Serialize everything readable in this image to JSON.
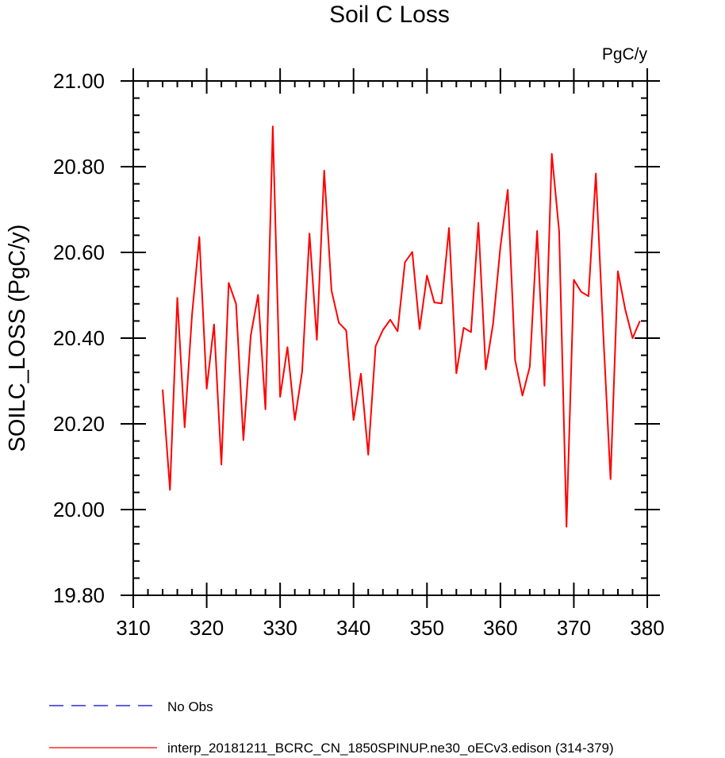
{
  "chart_data": {
    "type": "line",
    "title": "Soil C Loss",
    "units_label": "PgC/y",
    "xlabel": "",
    "ylabel": "SOILC_LOSS  (PgC/y)",
    "xlim": [
      310,
      380
    ],
    "ylim": [
      19.8,
      21.0
    ],
    "xticks": [
      310,
      320,
      330,
      340,
      350,
      360,
      370,
      380
    ],
    "xtick_labels": [
      "310",
      "320",
      "330",
      "340",
      "350",
      "360",
      "370",
      "380"
    ],
    "yticks": [
      19.8,
      20.0,
      20.2,
      20.4,
      20.6,
      20.8,
      21.0
    ],
    "ytick_labels": [
      "19.80",
      "20.00",
      "20.20",
      "20.40",
      "20.60",
      "20.80",
      "21.00"
    ],
    "grid": false,
    "legend_position": "bottom",
    "series": [
      {
        "name": "No Obs",
        "color": "#0000cc",
        "dash": "dashed",
        "x": [],
        "y": []
      },
      {
        "name": "interp_20181211_BCRC_CN_1850SPINUP.ne30_oECv3.edison (314-379)",
        "color": "#ff0000",
        "dash": "solid",
        "x": [
          314,
          315,
          316,
          317,
          318,
          319,
          320,
          321,
          322,
          323,
          324,
          325,
          326,
          327,
          328,
          329,
          330,
          331,
          332,
          333,
          334,
          335,
          336,
          337,
          338,
          339,
          340,
          341,
          342,
          343,
          344,
          345,
          346,
          347,
          348,
          349,
          350,
          351,
          352,
          353,
          354,
          355,
          356,
          357,
          358,
          359,
          360,
          361,
          362,
          363,
          364,
          365,
          366,
          367,
          368,
          369,
          370,
          371,
          372,
          373,
          374,
          375,
          376,
          377,
          378,
          379
        ],
        "y": [
          20.28,
          20.046,
          20.494,
          20.192,
          20.454,
          20.636,
          20.282,
          20.432,
          20.105,
          20.529,
          20.48,
          20.162,
          20.406,
          20.501,
          20.234,
          20.894,
          20.263,
          20.379,
          20.209,
          20.322,
          20.644,
          20.396,
          20.791,
          20.511,
          20.436,
          20.418,
          20.209,
          20.317,
          20.128,
          20.381,
          20.419,
          20.443,
          20.416,
          20.577,
          20.601,
          20.421,
          20.546,
          20.483,
          20.481,
          20.657,
          20.318,
          20.424,
          20.414,
          20.669,
          20.327,
          20.433,
          20.613,
          20.746,
          20.349,
          20.266,
          20.333,
          20.65,
          20.289,
          20.83,
          20.649,
          19.96,
          20.536,
          20.508,
          20.498,
          20.784,
          20.413,
          20.071,
          20.556,
          20.467,
          20.4,
          20.44
        ]
      }
    ]
  }
}
